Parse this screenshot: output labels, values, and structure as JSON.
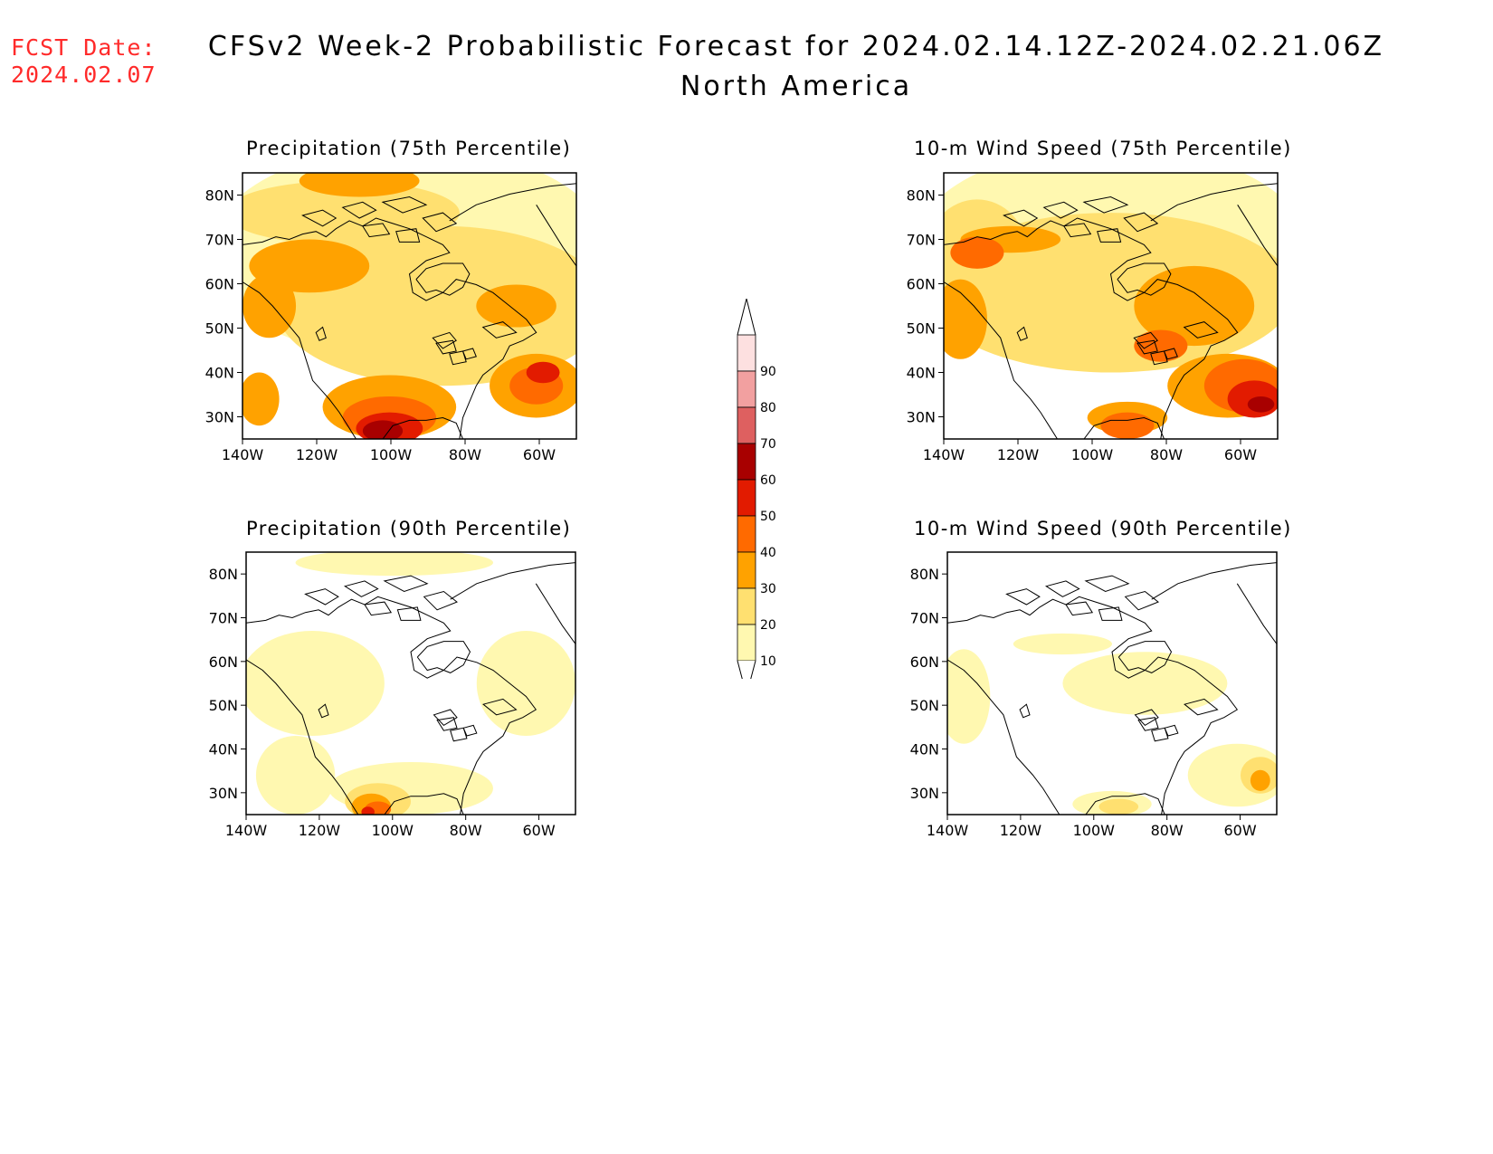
{
  "header": {
    "fcst_label": "FCST Date:",
    "fcst_date": "2024.02.07",
    "title": "CFSv2 Week-2 Probabilistic Forecast for 2024.02.14.12Z-2024.02.21.06Z",
    "subtitle": "North America"
  },
  "axes": {
    "lat_labels": [
      "80N",
      "70N",
      "60N",
      "50N",
      "40N",
      "30N"
    ],
    "lon_labels": [
      "140W",
      "120W",
      "100W",
      "80W",
      "60W"
    ]
  },
  "colorbar": {
    "levels": [
      "90",
      "80",
      "70",
      "60",
      "50",
      "40",
      "30",
      "20",
      "10"
    ],
    "colors": [
      "#fde0e0",
      "#f2a0a0",
      "#de6060",
      "#a80000",
      "#e21b00",
      "#ff6a00",
      "#ffa200",
      "#ffe070",
      "#fff8b0"
    ]
  },
  "panels": [
    {
      "title": "Precipitation (75th Percentile)",
      "variable": "precipitation",
      "percentile": "75th"
    },
    {
      "title": "10-m Wind Speed (75th Percentile)",
      "variable": "wind",
      "percentile": "75th"
    },
    {
      "title": "Precipitation (90th Percentile)",
      "variable": "precipitation",
      "percentile": "90th"
    },
    {
      "title": "10-m Wind Speed (90th Percentile)",
      "variable": "wind",
      "percentile": "90th"
    }
  ],
  "colors": {
    "fcst_text": "#ff2a2a",
    "c10": "#fff8b0",
    "c20": "#ffe070",
    "c30": "#ffa200",
    "c40": "#ff6a00",
    "c50": "#e21b00",
    "c60": "#a80000",
    "c70": "#de6060"
  }
}
